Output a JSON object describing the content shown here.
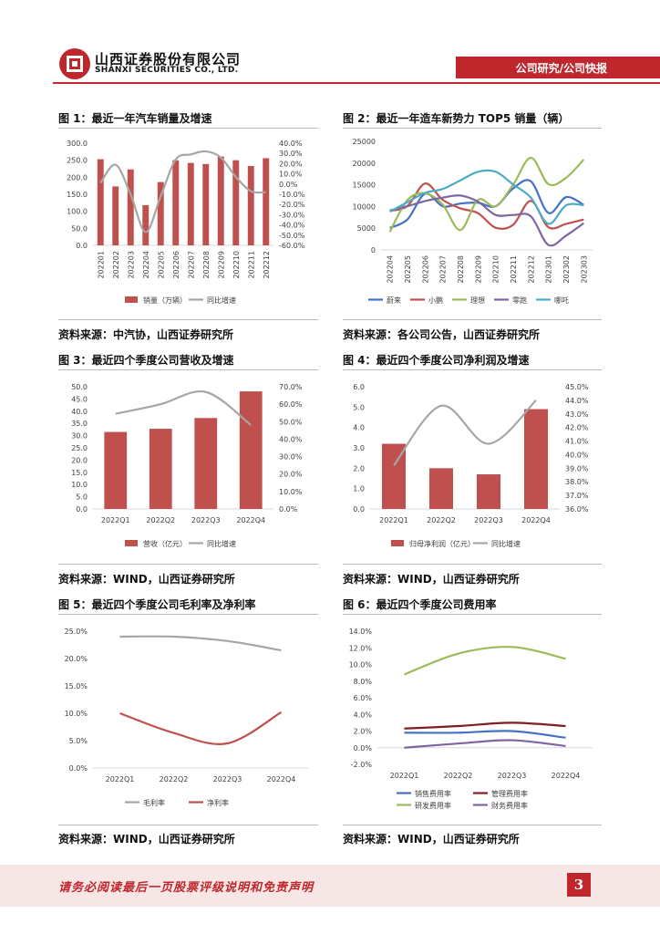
{
  "header": {
    "company_cn": "山西证券股份有限公司",
    "company_en": "SHANXI SECURITIES CO., LTD.",
    "category": "公司研究/公司快报"
  },
  "figures": {
    "fig1": {
      "title": "图 1：最近一年汽车销量及增速",
      "source": "资料来源：中汽协，山西证券研究所"
    },
    "fig2": {
      "title": "图 2：最近一年造车新势力 TOP5 销量（辆）",
      "source": "资料来源：各公司公告，山西证券研究所"
    },
    "fig3": {
      "title": "图 3：最近四个季度公司营收及增速",
      "source": "资料来源：WIND，山西证券研究所"
    },
    "fig4": {
      "title": "图 4：最近四个季度公司净利润及增速",
      "source": "资料来源：WIND，山西证券研究所"
    },
    "fig5": {
      "title": "图 5：最近四个季度公司毛利率及净利率",
      "source": "资料来源：WIND，山西证券研究所"
    },
    "fig6": {
      "title": "图 6：最近四个季度公司费用率",
      "source": "资料来源：WIND，山西证券研究所"
    }
  },
  "footer": {
    "disclaimer": "请务必阅读最后一页股票评级说明和免责声明",
    "page_number": "3"
  },
  "colors": {
    "brand": "#c0272d",
    "bar": "#c0504d",
    "gray_line": "#a6a6a6"
  },
  "chart_data": [
    {
      "id": "fig1",
      "type": "bar",
      "categories": [
        "202201",
        "202202",
        "202203",
        "202204",
        "202205",
        "202206",
        "202207",
        "202208",
        "202209",
        "202210",
        "202211",
        "202212"
      ],
      "series": [
        {
          "name": "销量（万辆）",
          "axis": "left",
          "kind": "bar",
          "values": [
            253,
            173,
            223,
            118,
            186,
            250,
            242,
            239,
            261,
            250,
            233,
            256
          ]
        },
        {
          "name": "同比增速",
          "axis": "right",
          "kind": "line",
          "unit": "%",
          "values": [
            1,
            19,
            -10,
            -47,
            -12,
            24,
            29,
            32,
            26,
            7,
            -7,
            -8
          ]
        }
      ],
      "yleft": {
        "min": 0,
        "max": 300,
        "ticks": [
          "0.0",
          "50.0",
          "100.0",
          "150.0",
          "200.0",
          "250.0",
          "300.0"
        ]
      },
      "yright": {
        "min": -60,
        "max": 40,
        "ticks": [
          "40.0%",
          "30.0%",
          "20.0%",
          "10.0%",
          "0.0%",
          "-10.0%",
          "-20.0%",
          "-30.0%",
          "-40.0%",
          "-50.0%",
          "-60.0%"
        ]
      }
    },
    {
      "id": "fig2",
      "type": "line",
      "categories": [
        "202204",
        "202205",
        "202206",
        "202207",
        "202208",
        "202209",
        "202210",
        "202211",
        "202212",
        "202301",
        "202302",
        "202303"
      ],
      "series": [
        {
          "name": "蔚来",
          "color": "#4472c4",
          "values": [
            5074,
            7024,
            12961,
            10052,
            10677,
            10878,
            10059,
            14178,
            15815,
            8506,
            12157,
            10378
          ]
        },
        {
          "name": "小鹏",
          "color": "#c0504d",
          "values": [
            9002,
            10125,
            15295,
            11524,
            9578,
            8468,
            5101,
            5811,
            11292,
            5218,
            6010,
            7002
          ]
        },
        {
          "name": "理想",
          "color": "#9bbb59",
          "values": [
            4167,
            11496,
            13024,
            10422,
            4571,
            11531,
            10052,
            15034,
            21233,
            15141,
            16620,
            20823
          ]
        },
        {
          "name": "零跑",
          "color": "#8064a2",
          "values": [
            9087,
            10069,
            11259,
            12044,
            12525,
            11115,
            8047,
            8045,
            7738,
            1139,
            3299,
            6172
          ]
        },
        {
          "name": "哪吒",
          "color": "#4bacc6",
          "values": [
            8813,
            11009,
            13157,
            14037,
            16017,
            18005,
            18016,
            15058,
            12039,
            6016,
            10273,
            10305
          ]
        }
      ],
      "yleft": {
        "min": 0,
        "max": 25000,
        "ticks": [
          "0",
          "5000",
          "10000",
          "15000",
          "20000",
          "25000"
        ]
      }
    },
    {
      "id": "fig3",
      "type": "bar",
      "categories": [
        "2022Q1",
        "2022Q2",
        "2022Q3",
        "2022Q4"
      ],
      "series": [
        {
          "name": "营收（亿元）",
          "axis": "left",
          "kind": "bar",
          "values": [
            31.5,
            32.8,
            37.2,
            48.1
          ]
        },
        {
          "name": "同比增速",
          "axis": "right",
          "kind": "line",
          "unit": "%",
          "values": [
            54.5,
            60.0,
            67.0,
            48.0
          ]
        }
      ],
      "yleft": {
        "min": 0,
        "max": 50,
        "ticks": [
          "0.0",
          "5.0",
          "10.0",
          "15.0",
          "20.0",
          "25.0",
          "30.0",
          "35.0",
          "40.0",
          "45.0",
          "50.0"
        ]
      },
      "yright": {
        "min": 0,
        "max": 70,
        "ticks": [
          "0.0%",
          "10.0%",
          "20.0%",
          "30.0%",
          "40.0%",
          "50.0%",
          "60.0%",
          "70.0%"
        ]
      }
    },
    {
      "id": "fig4",
      "type": "bar",
      "categories": [
        "2022Q1",
        "2022Q2",
        "2022Q3",
        "2022Q4"
      ],
      "series": [
        {
          "name": "归母净利润（亿元）",
          "axis": "left",
          "kind": "bar",
          "values": [
            3.2,
            2.0,
            1.7,
            4.9
          ]
        },
        {
          "name": "同比增速",
          "axis": "right",
          "kind": "line",
          "unit": "%",
          "values": [
            39.2,
            43.6,
            40.8,
            44.0
          ]
        }
      ],
      "yleft": {
        "min": 0,
        "max": 6,
        "ticks": [
          "0.0",
          "1.0",
          "2.0",
          "3.0",
          "4.0",
          "5.0",
          "6.0"
        ]
      },
      "yright": {
        "min": 36,
        "max": 45,
        "ticks": [
          "36.0%",
          "37.0%",
          "38.0%",
          "39.0%",
          "40.0%",
          "41.0%",
          "42.0%",
          "43.0%",
          "44.0%",
          "45.0%"
        ]
      }
    },
    {
      "id": "fig5",
      "type": "line",
      "categories": [
        "2022Q1",
        "2022Q2",
        "2022Q3",
        "2022Q4"
      ],
      "series": [
        {
          "name": "毛利率",
          "color": "#a6a6a6",
          "values": [
            24.0,
            24.0,
            23.2,
            21.5
          ]
        },
        {
          "name": "净利率",
          "color": "#c0504d",
          "values": [
            10.0,
            6.4,
            4.5,
            10.2
          ]
        }
      ],
      "yleft": {
        "min": 0,
        "max": 25,
        "ticks": [
          "0.0%",
          "5.0%",
          "10.0%",
          "15.0%",
          "20.0%",
          "25.0%"
        ]
      }
    },
    {
      "id": "fig6",
      "type": "line",
      "categories": [
        "2022Q1",
        "2022Q2",
        "2022Q3",
        "2022Q4"
      ],
      "series": [
        {
          "name": "销售费用率",
          "color": "#4472c4",
          "values": [
            1.8,
            1.8,
            2.0,
            1.2
          ]
        },
        {
          "name": "管理费用率",
          "color": "#7f1f1f",
          "values": [
            2.3,
            2.6,
            3.0,
            2.6
          ]
        },
        {
          "name": "研发费用率",
          "color": "#9bbb59",
          "values": [
            8.8,
            11.3,
            12.1,
            10.7
          ]
        },
        {
          "name": "财务费用率",
          "color": "#8064a2",
          "values": [
            0.0,
            0.5,
            0.9,
            0.2
          ]
        }
      ],
      "yleft": {
        "min": -2,
        "max": 14,
        "ticks": [
          "-2.0%",
          "0.0%",
          "2.0%",
          "4.0%",
          "6.0%",
          "8.0%",
          "10.0%",
          "12.0%",
          "14.0%"
        ]
      }
    }
  ]
}
